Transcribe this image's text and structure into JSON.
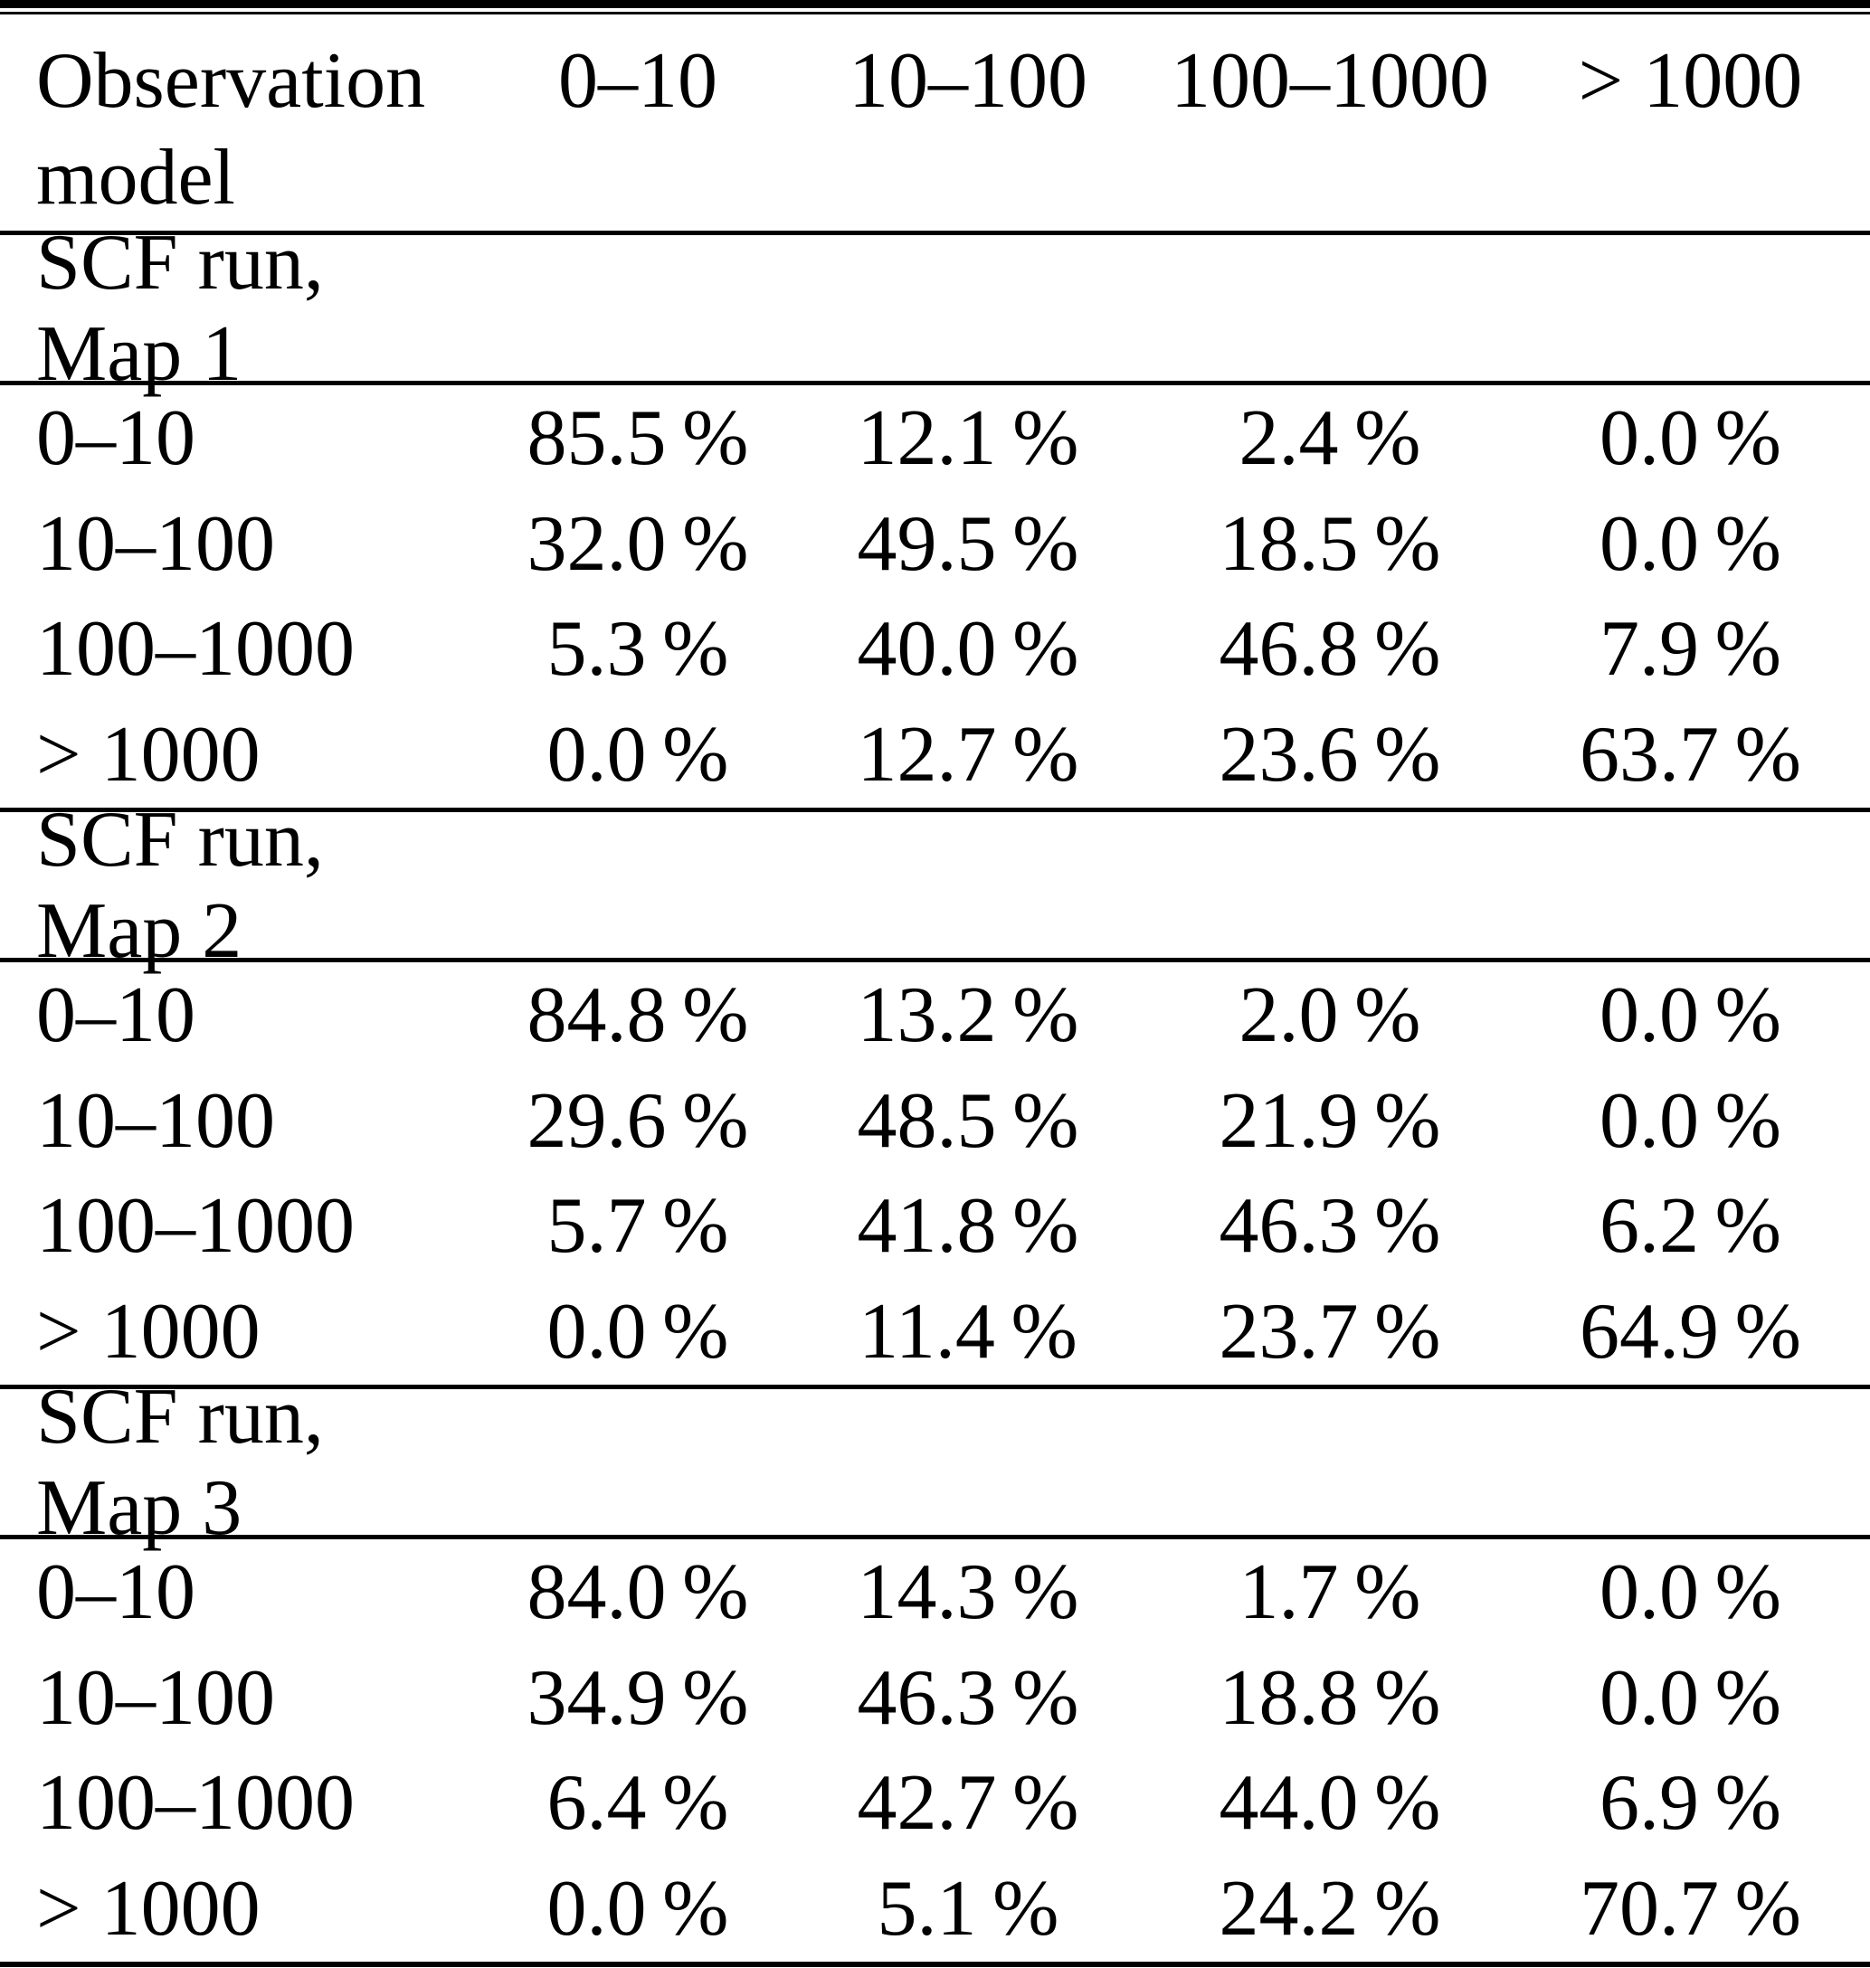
{
  "table": {
    "header": {
      "row_label": "Observation model",
      "columns": [
        "0–10",
        "10–100",
        "100–1000",
        "> 1000"
      ]
    },
    "sections": [
      {
        "title": "SCF run, Map 1",
        "rows": [
          {
            "label": "0–10",
            "values": [
              "85.5 %",
              "12.1 %",
              "2.4 %",
              "0.0 %"
            ]
          },
          {
            "label": "10–100",
            "values": [
              "32.0 %",
              "49.5 %",
              "18.5 %",
              "0.0 %"
            ]
          },
          {
            "label": "100–1000",
            "values": [
              "5.3 %",
              "40.0 %",
              "46.8 %",
              "7.9 %"
            ]
          },
          {
            "label": "> 1000",
            "values": [
              "0.0 %",
              "12.7 %",
              "23.6 %",
              "63.7 %"
            ]
          }
        ]
      },
      {
        "title": "SCF run, Map 2",
        "rows": [
          {
            "label": "0–10",
            "values": [
              "84.8 %",
              "13.2 %",
              "2.0 %",
              "0.0 %"
            ]
          },
          {
            "label": "10–100",
            "values": [
              "29.6 %",
              "48.5 %",
              "21.9 %",
              "0.0 %"
            ]
          },
          {
            "label": "100–1000",
            "values": [
              "5.7 %",
              "41.8 %",
              "46.3 %",
              "6.2 %"
            ]
          },
          {
            "label": "> 1000",
            "values": [
              "0.0 %",
              "11.4 %",
              "23.7 %",
              "64.9 %"
            ]
          }
        ]
      },
      {
        "title": "SCF run, Map 3",
        "rows": [
          {
            "label": "0–10",
            "values": [
              "84.0 %",
              "14.3 %",
              "1.7 %",
              "0.0 %"
            ]
          },
          {
            "label": "10–100",
            "values": [
              "34.9 %",
              "46.3 %",
              "18.8 %",
              "0.0 %"
            ]
          },
          {
            "label": "100–1000",
            "values": [
              "6.4 %",
              "42.7 %",
              "44.0 %",
              "6.9 %"
            ]
          },
          {
            "label": "> 1000",
            "values": [
              "0.0 %",
              "5.1 %",
              "24.2 %",
              "70.7 %"
            ]
          }
        ]
      }
    ]
  }
}
